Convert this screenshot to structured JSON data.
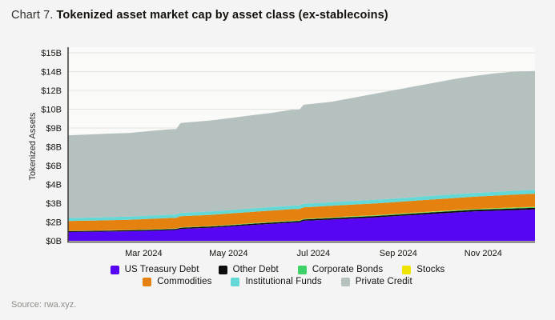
{
  "header": {
    "prefix": "Chart 7.",
    "title": "Tokenized asset market cap by asset class (ex-stablecoins)"
  },
  "source": "Source: rwa.xyz.",
  "colors": {
    "background": "#f4f4f4",
    "plot_background": "#fafaf9",
    "grid": "#e4e4e1",
    "axis": "#3c3b37",
    "text": "#16130e",
    "muted_text": "#8e8d89"
  },
  "chart_data": {
    "type": "area",
    "stacked": true,
    "title": "Tokenized asset market cap by asset class (ex-stablecoins)",
    "ylabel": "Tokenized Assets",
    "xlabel": "",
    "x_unit": "months (0 = early Jan 2024, 11 = early Dec 2024)",
    "x_range": [
      0,
      11
    ],
    "y_range": [
      0,
      15
    ],
    "grid": true,
    "legend_position": "bottom",
    "y_ticks": [
      {
        "value": 0,
        "label": "$0B"
      },
      {
        "value": 1.5,
        "label": "$2B"
      },
      {
        "value": 3,
        "label": "$3B"
      },
      {
        "value": 4.5,
        "label": "$4B"
      },
      {
        "value": 6,
        "label": "$6B"
      },
      {
        "value": 7.5,
        "label": "$8B"
      },
      {
        "value": 9,
        "label": "$9B"
      },
      {
        "value": 10.5,
        "label": "$10B"
      },
      {
        "value": 12,
        "label": "$12B"
      },
      {
        "value": 13.5,
        "label": "$14B"
      },
      {
        "value": 15,
        "label": "$15B"
      }
    ],
    "x_ticks": [
      {
        "value": 1.78,
        "label": "Mar 2024"
      },
      {
        "value": 3.78,
        "label": "May 2024"
      },
      {
        "value": 5.78,
        "label": "Jul 2024"
      },
      {
        "value": 7.78,
        "label": "Sep 2024"
      },
      {
        "value": 9.78,
        "label": "Nov 2024"
      }
    ],
    "x": [
      0,
      0.48,
      0.96,
      1.43,
      1.91,
      2.39,
      2.55,
      2.65,
      3.35,
      3.83,
      4.3,
      4.78,
      5.26,
      5.45,
      5.55,
      6.22,
      6.7,
      7.17,
      7.65,
      8.13,
      8.61,
      9.09,
      9.57,
      10.04,
      10.52,
      11.0
    ],
    "series": [
      {
        "name": "US Treasury Debt",
        "color": "#5606f2",
        "unit": "$B",
        "values": [
          0.7,
          0.72,
          0.74,
          0.76,
          0.8,
          0.85,
          0.87,
          0.95,
          1.05,
          1.15,
          1.25,
          1.35,
          1.45,
          1.47,
          1.6,
          1.7,
          1.78,
          1.85,
          1.95,
          2.05,
          2.15,
          2.25,
          2.35,
          2.4,
          2.45,
          2.5
        ]
      },
      {
        "name": "Other Debt",
        "color": "#0c0c0c",
        "unit": "$B",
        "values": [
          0.07,
          0.07,
          0.07,
          0.08,
          0.08,
          0.08,
          0.08,
          0.09,
          0.09,
          0.09,
          0.1,
          0.1,
          0.1,
          0.1,
          0.1,
          0.11,
          0.11,
          0.11,
          0.11,
          0.12,
          0.12,
          0.12,
          0.12,
          0.12,
          0.13,
          0.13
        ]
      },
      {
        "name": "Corporate Bonds",
        "color": "#3ed167",
        "unit": "$B",
        "values": [
          0.02,
          0.02,
          0.02,
          0.02,
          0.03,
          0.03,
          0.03,
          0.03,
          0.03,
          0.03,
          0.04,
          0.04,
          0.04,
          0.04,
          0.04,
          0.04,
          0.05,
          0.05,
          0.05,
          0.05,
          0.05,
          0.05,
          0.05,
          0.06,
          0.06,
          0.06
        ]
      },
      {
        "name": "Stocks",
        "color": "#eee303",
        "unit": "$B",
        "values": [
          0.01,
          0.01,
          0.01,
          0.01,
          0.01,
          0.01,
          0.01,
          0.01,
          0.01,
          0.01,
          0.01,
          0.01,
          0.01,
          0.01,
          0.01,
          0.02,
          0.02,
          0.02,
          0.02,
          0.02,
          0.02,
          0.02,
          0.02,
          0.02,
          0.02,
          0.02
        ]
      },
      {
        "name": "Commodities",
        "color": "#e5810e",
        "unit": "$B",
        "values": [
          0.78,
          0.79,
          0.8,
          0.81,
          0.83,
          0.85,
          0.85,
          0.88,
          0.89,
          0.9,
          0.9,
          0.91,
          0.92,
          0.92,
          0.92,
          0.93,
          0.93,
          0.94,
          0.94,
          0.95,
          0.96,
          0.97,
          0.98,
          1.0,
          1.02,
          1.05
        ]
      },
      {
        "name": "Institutional Funds",
        "color": "#63d8d6",
        "unit": "$B",
        "values": [
          0.24,
          0.24,
          0.25,
          0.25,
          0.26,
          0.26,
          0.26,
          0.27,
          0.27,
          0.27,
          0.28,
          0.28,
          0.28,
          0.28,
          0.28,
          0.28,
          0.29,
          0.29,
          0.29,
          0.29,
          0.3,
          0.3,
          0.3,
          0.3,
          0.31,
          0.32
        ]
      },
      {
        "name": "Private Credit",
        "color": "#b4c1be",
        "unit": "$B",
        "values": [
          6.6,
          6.63,
          6.66,
          6.67,
          6.74,
          6.82,
          6.82,
          7.17,
          7.26,
          7.35,
          7.42,
          7.51,
          7.65,
          7.65,
          7.9,
          8.02,
          8.22,
          8.44,
          8.64,
          8.82,
          9.0,
          9.19,
          9.33,
          9.46,
          9.51,
          9.47
        ]
      }
    ],
    "legend_rows": [
      [
        0,
        1,
        2,
        3
      ],
      [
        4,
        5,
        6
      ]
    ]
  }
}
